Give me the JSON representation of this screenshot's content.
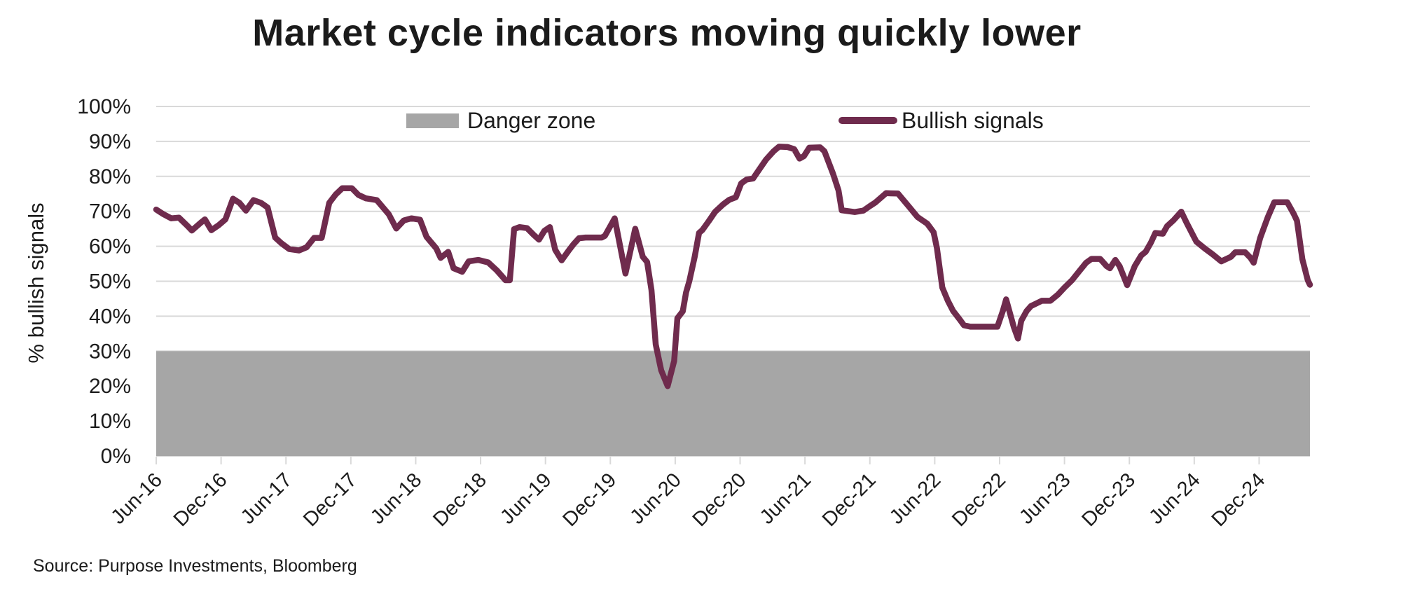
{
  "chart_data": {
    "type": "line",
    "title": "Market cycle indicators moving quickly lower",
    "ylabel": "% bullish signals",
    "source": "Source: Purpose Investments, Bloomberg",
    "ylim": [
      0,
      100
    ],
    "xlim_months": [
      0,
      106.7
    ],
    "x_unit": "months since Jun-2016 (0 = Jun-16)",
    "grid": "horizontal",
    "legend_position": "top",
    "gridline_color": "#D9D9D9",
    "y_ticks": [
      {
        "value": 0,
        "label": "0%"
      },
      {
        "value": 10,
        "label": "10%"
      },
      {
        "value": 20,
        "label": "20%"
      },
      {
        "value": 30,
        "label": "30%"
      },
      {
        "value": 40,
        "label": "40%"
      },
      {
        "value": 50,
        "label": "50%"
      },
      {
        "value": 60,
        "label": "60%"
      },
      {
        "value": 70,
        "label": "70%"
      },
      {
        "value": 80,
        "label": "80%"
      },
      {
        "value": 90,
        "label": "90%"
      },
      {
        "value": 100,
        "label": "100%"
      }
    ],
    "x_ticks": [
      {
        "m": 0,
        "label": "Jun-16"
      },
      {
        "m": 6,
        "label": "Dec-16"
      },
      {
        "m": 12,
        "label": "Jun-17"
      },
      {
        "m": 18,
        "label": "Dec-17"
      },
      {
        "m": 24,
        "label": "Jun-18"
      },
      {
        "m": 30,
        "label": "Dec-18"
      },
      {
        "m": 36,
        "label": "Jun-19"
      },
      {
        "m": 42,
        "label": "Dec-19"
      },
      {
        "m": 48,
        "label": "Jun-20"
      },
      {
        "m": 54,
        "label": "Dec-20"
      },
      {
        "m": 60,
        "label": "Jun-21"
      },
      {
        "m": 66,
        "label": "Dec-21"
      },
      {
        "m": 72,
        "label": "Jun-22"
      },
      {
        "m": 78,
        "label": "Dec-22"
      },
      {
        "m": 84,
        "label": "Jun-23"
      },
      {
        "m": 90,
        "label": "Dec-23"
      },
      {
        "m": 96,
        "label": "Jun-24"
      },
      {
        "m": 102,
        "label": "Dec-24"
      }
    ],
    "danger_zone": {
      "label": "Danger zone",
      "from_pct": 0,
      "to_pct": 30,
      "color": "#A6A6A6"
    },
    "legend": [
      {
        "label": "Danger zone",
        "swatch": "box",
        "color": "#A6A6A6"
      },
      {
        "label": "Bullish signals",
        "swatch": "line",
        "color": "#6F2B4D"
      }
    ],
    "series": [
      {
        "name": "Bullish signals",
        "color": "#6F2B4D",
        "stroke_width": 8.5,
        "points": [
          [
            0,
            70.5
          ],
          [
            0.6,
            69.3
          ],
          [
            1.4,
            68
          ],
          [
            2.1,
            68.2
          ],
          [
            2.9,
            65.8
          ],
          [
            3.3,
            64.5
          ],
          [
            4.1,
            66.7
          ],
          [
            4.5,
            67.7
          ],
          [
            5.1,
            64.6
          ],
          [
            5.8,
            66.1
          ],
          [
            6.4,
            67.7
          ],
          [
            7.1,
            73.6
          ],
          [
            7.7,
            72.4
          ],
          [
            8.3,
            70.2
          ],
          [
            9,
            73.2
          ],
          [
            9.7,
            72.4
          ],
          [
            10.3,
            71.1
          ],
          [
            11,
            62.5
          ],
          [
            11.6,
            60.8
          ],
          [
            12.3,
            59.2
          ],
          [
            13.2,
            58.8
          ],
          [
            13.9,
            59.7
          ],
          [
            14.6,
            62.4
          ],
          [
            15.3,
            62.4
          ],
          [
            16,
            72.4
          ],
          [
            16.6,
            74.8
          ],
          [
            17.2,
            76.6
          ],
          [
            18.1,
            76.6
          ],
          [
            18.7,
            74.7
          ],
          [
            19.4,
            73.7
          ],
          [
            20.4,
            73.2
          ],
          [
            21.5,
            69.2
          ],
          [
            22.2,
            65.1
          ],
          [
            22.9,
            67.4
          ],
          [
            23.6,
            68
          ],
          [
            24.4,
            67.6
          ],
          [
            25,
            62.7
          ],
          [
            25.9,
            59.4
          ],
          [
            26.3,
            56.7
          ],
          [
            27,
            58.4
          ],
          [
            27.5,
            53.7
          ],
          [
            28.3,
            52.7
          ],
          [
            28.9,
            55.7
          ],
          [
            29.8,
            56.1
          ],
          [
            30.7,
            55.4
          ],
          [
            31.5,
            53.1
          ],
          [
            32.3,
            50.3
          ],
          [
            32.7,
            50.3
          ],
          [
            33.1,
            64.9
          ],
          [
            33.6,
            65.5
          ],
          [
            34.3,
            65.2
          ],
          [
            34.9,
            63.3
          ],
          [
            35.4,
            61.9
          ],
          [
            35.9,
            64.4
          ],
          [
            36.4,
            65.5
          ],
          [
            36.9,
            59
          ],
          [
            37.5,
            56
          ],
          [
            38.2,
            59
          ],
          [
            38.6,
            60.6
          ],
          [
            39.1,
            62.3
          ],
          [
            39.7,
            62.5
          ],
          [
            41.2,
            62.5
          ],
          [
            41.5,
            63
          ],
          [
            42.4,
            68
          ],
          [
            43.4,
            52.2
          ],
          [
            44.3,
            65
          ],
          [
            45,
            57
          ],
          [
            45.4,
            55.5
          ],
          [
            45.8,
            47.5
          ],
          [
            46.2,
            31.9
          ],
          [
            46.7,
            24.5
          ],
          [
            47.3,
            20
          ],
          [
            47.9,
            27.2
          ],
          [
            48.2,
            39.4
          ],
          [
            48.7,
            41.4
          ],
          [
            49,
            46.8
          ],
          [
            49.3,
            50
          ],
          [
            49.8,
            57
          ],
          [
            50.2,
            63.8
          ],
          [
            50.5,
            64.6
          ],
          [
            51.1,
            67.2
          ],
          [
            51.7,
            69.9
          ],
          [
            52.4,
            71.9
          ],
          [
            53,
            73.3
          ],
          [
            53.6,
            74
          ],
          [
            54.1,
            78
          ],
          [
            54.6,
            79.1
          ],
          [
            55.2,
            79.4
          ],
          [
            55.8,
            82.1
          ],
          [
            56.4,
            84.8
          ],
          [
            57.1,
            87.2
          ],
          [
            57.6,
            88.5
          ],
          [
            58.4,
            88.4
          ],
          [
            59,
            87.8
          ],
          [
            59.5,
            85.1
          ],
          [
            59.9,
            85.8
          ],
          [
            60.4,
            88.2
          ],
          [
            61.4,
            88.3
          ],
          [
            61.8,
            87.2
          ],
          [
            62.6,
            80.7
          ],
          [
            63.1,
            76
          ],
          [
            63.4,
            70.3
          ],
          [
            64.6,
            69.8
          ],
          [
            65.4,
            70.2
          ],
          [
            66,
            71.5
          ],
          [
            66.5,
            72.5
          ],
          [
            67.5,
            75.2
          ],
          [
            68.6,
            75.1
          ],
          [
            69.6,
            71.4
          ],
          [
            70.4,
            68.4
          ],
          [
            71.3,
            66.5
          ],
          [
            71.9,
            64
          ],
          [
            72.2,
            59.5
          ],
          [
            72.7,
            48.2
          ],
          [
            73.2,
            44.5
          ],
          [
            73.7,
            41.5
          ],
          [
            74.3,
            39.1
          ],
          [
            74.7,
            37.4
          ],
          [
            75.3,
            37
          ],
          [
            77.8,
            37
          ],
          [
            78.3,
            41.5
          ],
          [
            78.6,
            44.8
          ],
          [
            79.3,
            37
          ],
          [
            79.7,
            33.6
          ],
          [
            80,
            38.7
          ],
          [
            80.5,
            41.5
          ],
          [
            80.9,
            42.9
          ],
          [
            81.9,
            44.4
          ],
          [
            82.7,
            44.4
          ],
          [
            83.4,
            46.2
          ],
          [
            84,
            48.2
          ],
          [
            84.7,
            50.3
          ],
          [
            85.4,
            53
          ],
          [
            86,
            55.3
          ],
          [
            86.5,
            56.4
          ],
          [
            87.3,
            56.4
          ],
          [
            87.9,
            54.3
          ],
          [
            88.2,
            53.7
          ],
          [
            88.7,
            56.1
          ],
          [
            89.1,
            54.3
          ],
          [
            89.8,
            48.9
          ],
          [
            90.5,
            54.3
          ],
          [
            91.1,
            57.4
          ],
          [
            91.5,
            58.4
          ],
          [
            92,
            61.1
          ],
          [
            92.4,
            63.8
          ],
          [
            93.1,
            63.6
          ],
          [
            93.5,
            65.8
          ],
          [
            94.1,
            67.5
          ],
          [
            94.8,
            69.9
          ],
          [
            95.3,
            66.7
          ],
          [
            96.2,
            61.3
          ],
          [
            97,
            59.3
          ],
          [
            97.7,
            57.7
          ],
          [
            98.5,
            55.7
          ],
          [
            99.4,
            57
          ],
          [
            99.8,
            58.3
          ],
          [
            100.7,
            58.3
          ],
          [
            101.2,
            56.7
          ],
          [
            101.5,
            55.3
          ],
          [
            102.1,
            62.4
          ],
          [
            102.8,
            68.3
          ],
          [
            103.4,
            72.6
          ],
          [
            104.6,
            72.6
          ],
          [
            105.2,
            69.3
          ],
          [
            105.5,
            67.3
          ],
          [
            106,
            56.3
          ],
          [
            106.5,
            50.3
          ],
          [
            106.7,
            49
          ]
        ]
      }
    ]
  }
}
